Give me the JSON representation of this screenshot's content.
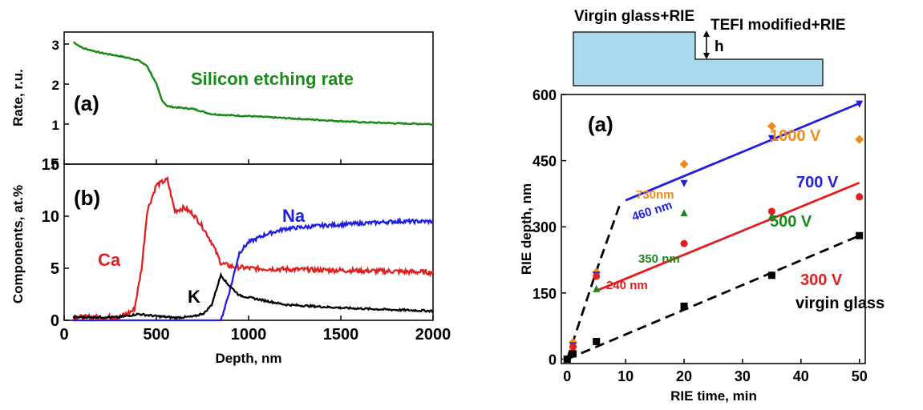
{
  "chart_data": [
    {
      "type": "line",
      "panel_label": "(a)",
      "title": "",
      "xlabel": "",
      "ylabel": "Rate, r.u.",
      "xlim": [
        0,
        2000
      ],
      "ylim": [
        0,
        3.3
      ],
      "xticks": [
        0,
        500,
        1000,
        1500,
        2000
      ],
      "yticks": [
        0,
        1,
        2,
        3
      ],
      "grid": false,
      "series": [
        {
          "name": "Silicon etching rate",
          "color": "#1a8a1a",
          "x": [
            50,
            100,
            200,
            300,
            400,
            450,
            500,
            530,
            560,
            600,
            700,
            800,
            900,
            1000,
            1200,
            1400,
            1600,
            1800,
            2000
          ],
          "y": [
            3.05,
            2.9,
            2.78,
            2.7,
            2.6,
            2.45,
            2.0,
            1.6,
            1.45,
            1.42,
            1.38,
            1.25,
            1.22,
            1.2,
            1.15,
            1.1,
            1.05,
            1.02,
            1.0
          ]
        }
      ]
    },
    {
      "type": "line",
      "panel_label": "(b)",
      "title": "",
      "xlabel": "Depth, nm",
      "ylabel": "Components, at.%",
      "xlim": [
        0,
        2000
      ],
      "ylim": [
        0,
        15
      ],
      "xticks": [
        0,
        500,
        1000,
        1500,
        2000
      ],
      "yticks": [
        0,
        5,
        10,
        15
      ],
      "grid": false,
      "series": [
        {
          "name": "Ca",
          "color": "#e02020",
          "x": [
            50,
            300,
            380,
            420,
            450,
            500,
            560,
            600,
            650,
            700,
            750,
            800,
            850,
            900,
            1000,
            1200,
            1500,
            1800,
            2000
          ],
          "y": [
            0.3,
            0.3,
            1.0,
            5.0,
            10.5,
            13.0,
            13.5,
            10.5,
            10.8,
            10.2,
            9.0,
            7.5,
            5.5,
            5.2,
            5.0,
            4.9,
            4.8,
            4.7,
            4.6
          ]
        },
        {
          "name": "Na",
          "color": "#1f1fe0",
          "x": [
            50,
            850,
            900,
            950,
            1000,
            1100,
            1200,
            1400,
            1600,
            1800,
            2000
          ],
          "y": [
            0,
            0,
            3.0,
            6.5,
            7.5,
            8.3,
            8.8,
            9.1,
            9.3,
            9.5,
            9.5
          ]
        },
        {
          "name": "K",
          "color": "#000000",
          "x": [
            50,
            300,
            400,
            500,
            600,
            700,
            760,
            800,
            840,
            850,
            880,
            950,
            1000,
            1200,
            1500,
            1800,
            2000
          ],
          "y": [
            0.3,
            0.3,
            0.6,
            0.4,
            0.25,
            0.35,
            0.7,
            1.5,
            3.8,
            4.4,
            3.6,
            2.4,
            2.2,
            1.5,
            1.2,
            1.0,
            0.9
          ]
        }
      ]
    },
    {
      "type": "scatter",
      "panel_label": "(a)",
      "title": "",
      "xlabel": "RIE time, min",
      "ylabel": "RIE depth, nm",
      "xlim": [
        -1,
        51
      ],
      "ylim": [
        -10,
        600
      ],
      "xticks": [
        0,
        10,
        20,
        30,
        40,
        50
      ],
      "yticks": [
        0,
        150,
        300,
        450,
        600
      ],
      "grid": false,
      "series": [
        {
          "name": "1000 V",
          "color": "#f08a1c",
          "marker": "diamond",
          "x": [
            0,
            1,
            5,
            20,
            35,
            50
          ],
          "y": [
            0,
            38,
            197,
            442,
            528,
            498
          ]
        },
        {
          "name": "700 V",
          "color": "#1f1fe0",
          "marker": "triangle-down",
          "x": [
            0,
            1,
            5,
            20,
            35,
            50
          ],
          "y": [
            0,
            30,
            190,
            398,
            500,
            578
          ]
        },
        {
          "name": "500 V",
          "color": "#1a8a1a",
          "marker": "triangle-up",
          "x": [
            0,
            1,
            5,
            20,
            35,
            50
          ],
          "y": [
            0,
            22,
            160,
            332,
            325,
            370
          ]
        },
        {
          "name": "300 V",
          "color": "#e02020",
          "marker": "circle",
          "x": [
            0,
            1,
            5,
            20,
            35,
            50
          ],
          "y": [
            0,
            28,
            188,
            262,
            335,
            368
          ]
        },
        {
          "name": "virgin glass",
          "color": "#000000",
          "marker": "square",
          "x": [
            0,
            1,
            5,
            20,
            35,
            50
          ],
          "y": [
            0,
            12,
            40,
            120,
            190,
            280
          ]
        }
      ],
      "fit_lines": [
        {
          "color": "#1f1fe0",
          "dash": false,
          "x": [
            10,
            50
          ],
          "y": [
            360,
            580
          ]
        },
        {
          "color": "#e02020",
          "dash": false,
          "x": [
            5,
            50
          ],
          "y": [
            155,
            400
          ]
        },
        {
          "color": "#000000",
          "dash": true,
          "x": [
            0,
            50
          ],
          "y": [
            0,
            280
          ]
        },
        {
          "color": "#000000",
          "dash": true,
          "x": [
            0,
            5,
            9
          ],
          "y": [
            0,
            200,
            350
          ]
        }
      ],
      "annotations": [
        {
          "text": "1000 V",
          "color": "#f08a1c"
        },
        {
          "text": "700 V",
          "color": "#1f1fe0"
        },
        {
          "text": "500 V",
          "color": "#1a8a1a"
        },
        {
          "text": "300 V",
          "color": "#e02020"
        },
        {
          "text": "virgin glass",
          "color": "#000000"
        },
        {
          "text": "730nm",
          "color": "#f08a1c"
        },
        {
          "text": "460 nm",
          "color": "#1f1fe0"
        },
        {
          "text": "350 nm",
          "color": "#1a8a1a"
        },
        {
          "text": "240 nm",
          "color": "#e02020"
        }
      ]
    }
  ],
  "schematic": {
    "left_label": "Virgin glass+RIE",
    "right_label": "TEFI modified+RIE",
    "step_label": "h",
    "fill_color": "#a8d8ee"
  }
}
